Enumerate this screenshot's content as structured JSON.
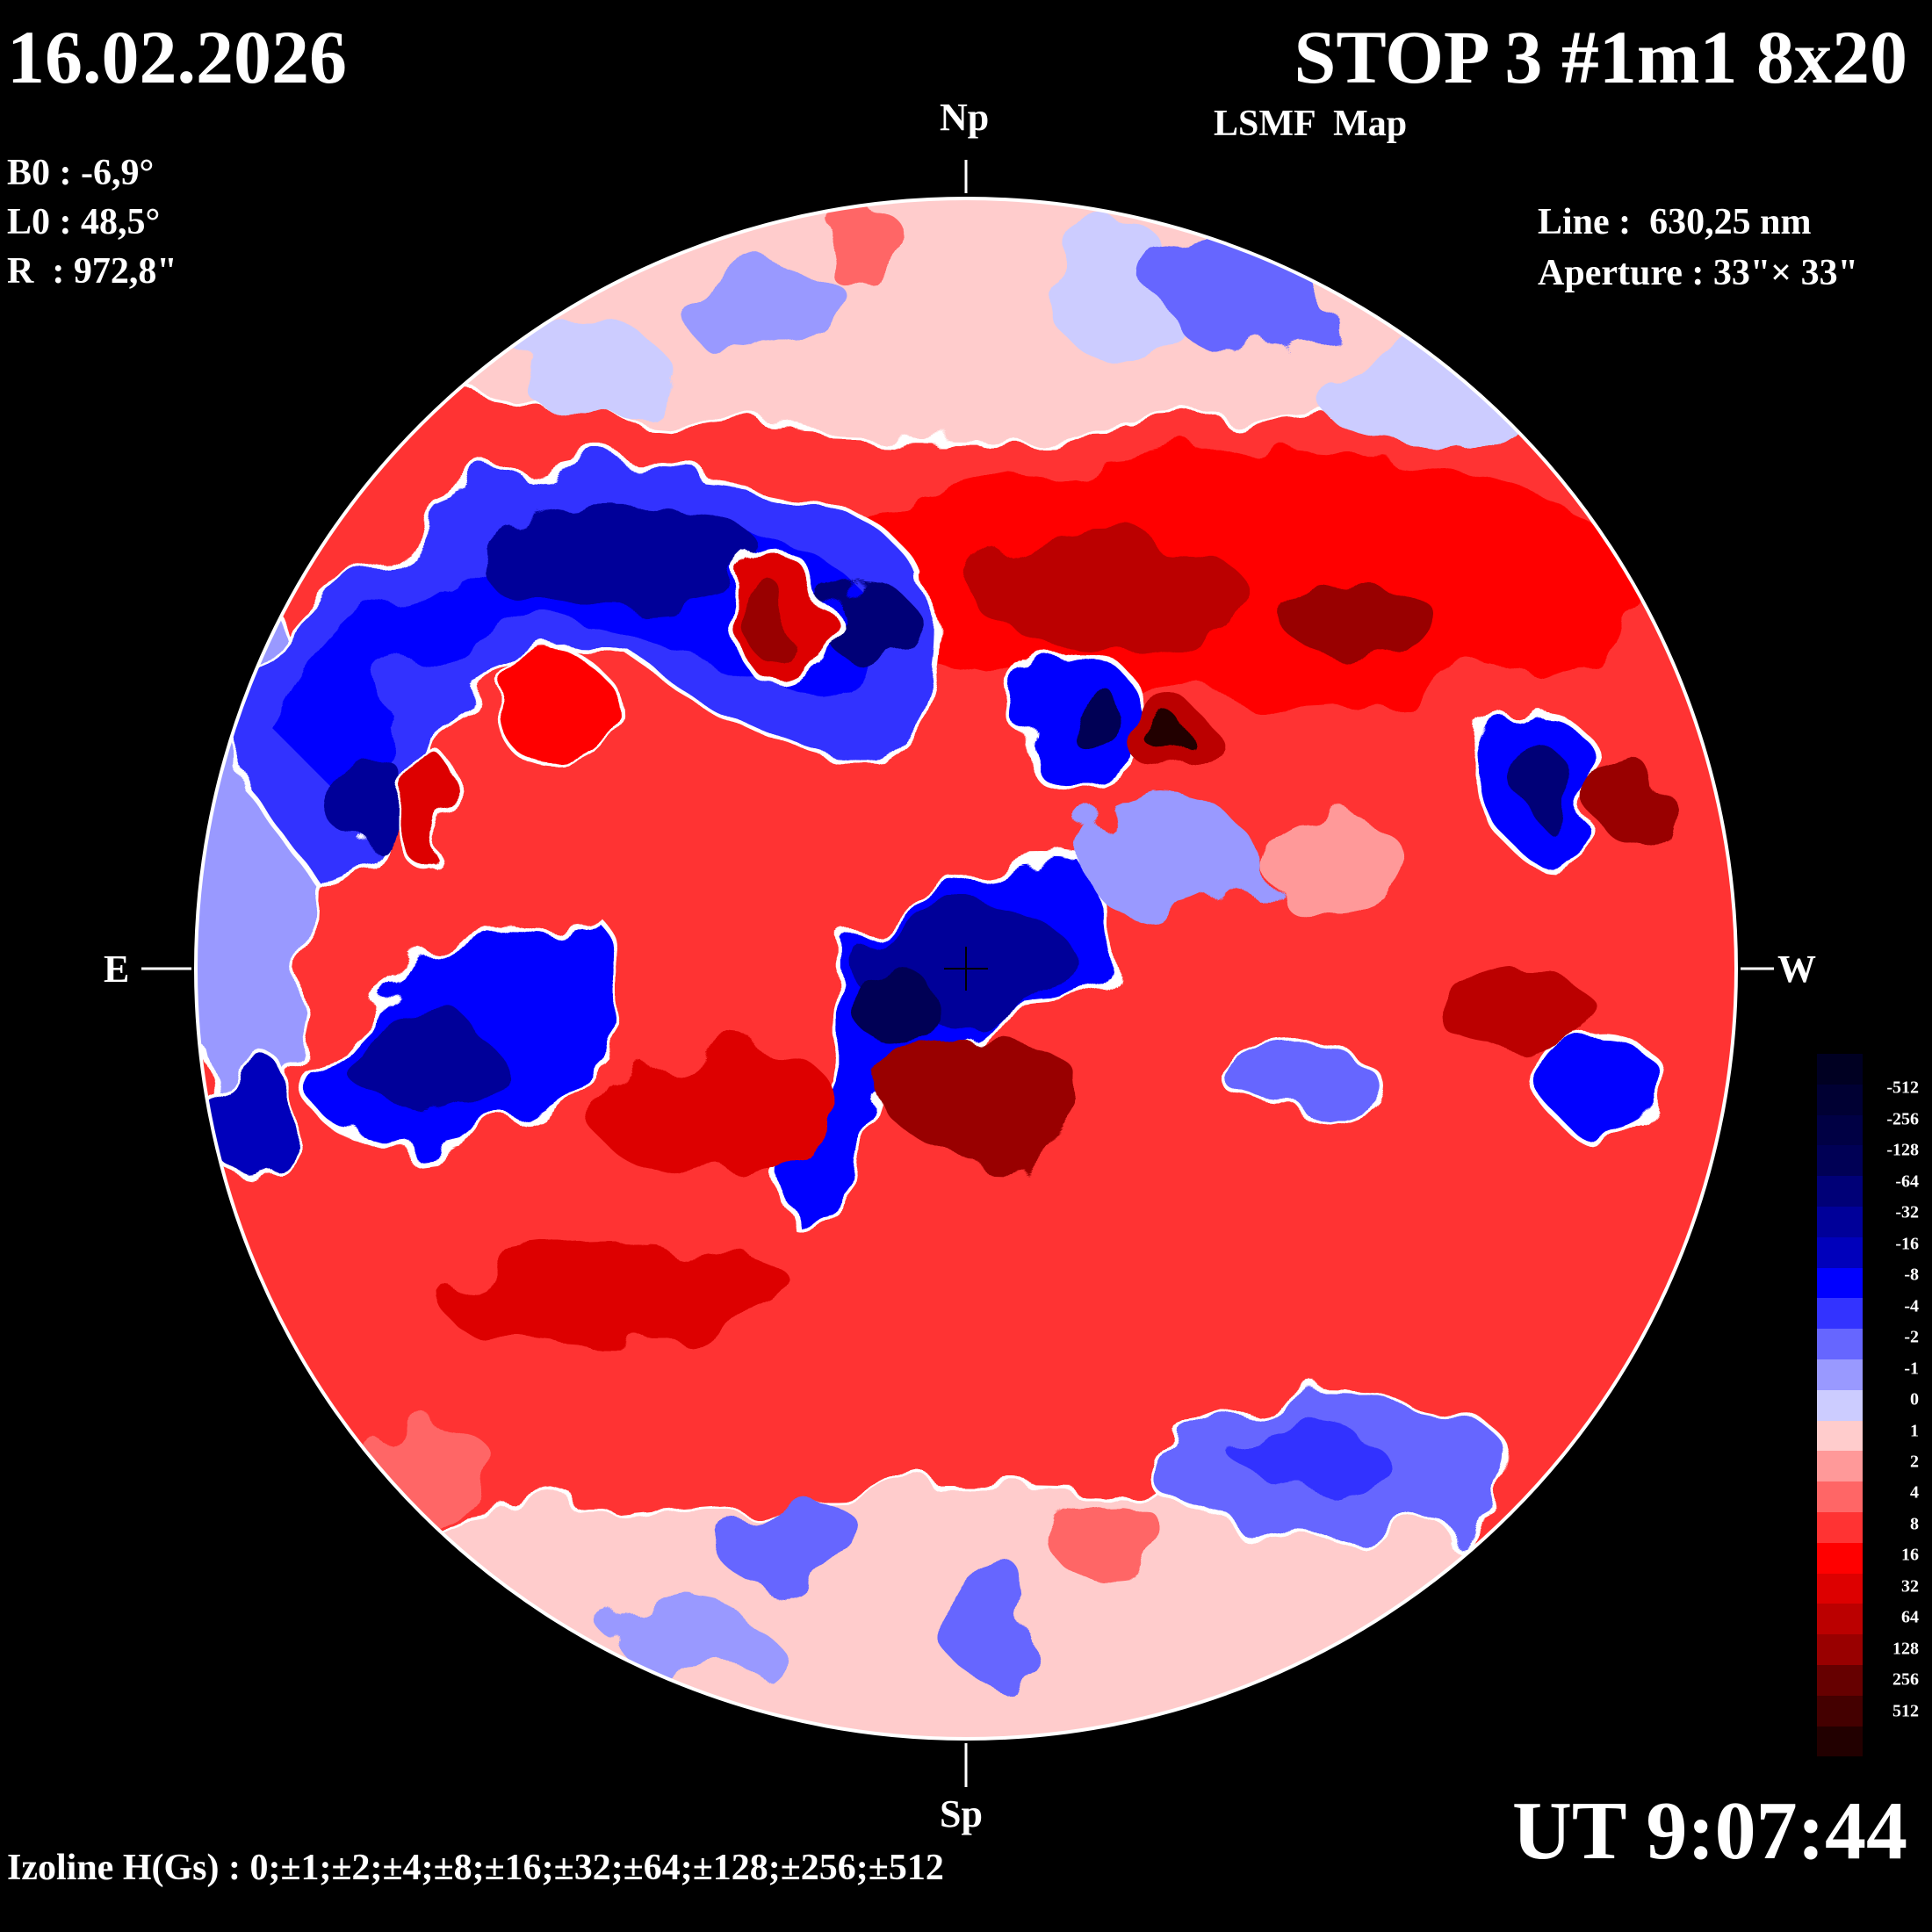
{
  "header": {
    "date": "16.02.2026",
    "title": "STOP 3 #1m1 8x20",
    "subtitle": "LSMF  Map",
    "time": "UT 9:07:44"
  },
  "params": {
    "b0": "B0 : -6,9°",
    "l0": "L0 : 48,5°",
    "r": "R  : 972,8\"",
    "line": "Line :  630,25 nm",
    "aperture": "Aperture : 33\"× 33\""
  },
  "directions": {
    "north": "Np",
    "south": "Sp",
    "east": "E",
    "west": "W"
  },
  "footer": {
    "izoline": "Izoline H(Gs) : 0;±1;±2;±4;±8;±16;±32;±64;±128;±256;±512"
  },
  "chart_data": {
    "type": "heatmap",
    "title": "LSMF Map",
    "colorbar": {
      "labels": [
        "-512",
        "-256",
        "-128",
        "-64",
        "-32",
        "-16",
        "-8",
        "-4",
        "-2",
        "-1",
        "0",
        "1",
        "2",
        "4",
        "8",
        "16",
        "32",
        "64",
        "128",
        "256",
        "512"
      ],
      "colors": [
        "#000022",
        "#000033",
        "#000044",
        "#000055",
        "#000077",
        "#000099",
        "#0000bb",
        "#0000ff",
        "#3333ff",
        "#6666ff",
        "#9999ff",
        "#ccccff",
        "#ffcccc",
        "#ff9999",
        "#ff6666",
        "#ff3333",
        "#ff0000",
        "#dd0000",
        "#bb0000",
        "#990000",
        "#660000",
        "#440000",
        "#220000"
      ],
      "unit": "Gs"
    }
  }
}
